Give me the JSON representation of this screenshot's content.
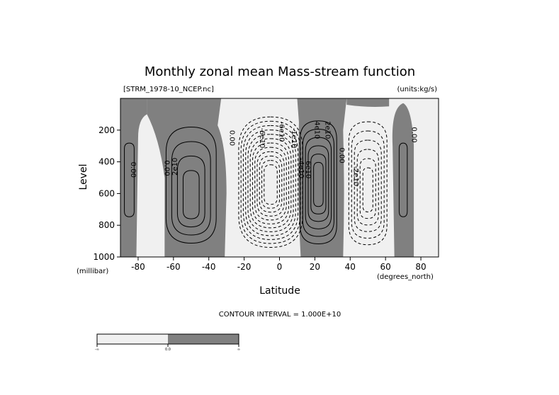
{
  "chart_data": {
    "type": "contour",
    "title": "Monthly zonal mean Mass-stream function",
    "file_label": "[STRM_1978-10_NCEP.nc]",
    "units_label": "(units:kg/s)",
    "xlabel": "Latitude",
    "xunits": "(degrees_north)",
    "ylabel": "Level",
    "yunits": "(millibar)",
    "xlim": [
      -90,
      90
    ],
    "ylim": [
      1000,
      0
    ],
    "x_ticks": [
      -80,
      -60,
      -40,
      -20,
      0,
      20,
      40,
      60,
      80
    ],
    "x_tick_labels": [
      "-80",
      "-60",
      "-40",
      "-20",
      "0",
      "20",
      "40",
      "60",
      "80"
    ],
    "y_ticks": [
      200,
      400,
      600,
      800,
      1000
    ],
    "y_tick_labels": [
      "200",
      "400",
      "600",
      "800",
      "1000"
    ],
    "contour_interval_text": "CONTOUR INTERVAL = 1.000E+10",
    "contour_interval": 10000000000.0,
    "negative_fill": "#f0f0f0",
    "positive_fill": "#808080",
    "cells": [
      {
        "name": "southern-polar-cell",
        "sign": "positive",
        "lat_range": [
          -90,
          -75
        ],
        "center_lat": -85,
        "center_p": 500,
        "n_contours": 1
      },
      {
        "name": "southern-ferrel-cell",
        "sign": "positive",
        "lat_range": [
          -64,
          -26
        ],
        "center_lat": -50,
        "center_p": 650,
        "n_contours": 4
      },
      {
        "name": "southern-hadley-cell",
        "sign": "negative",
        "lat_range": [
          -30,
          12
        ],
        "center_lat": -5,
        "center_p": 550,
        "n_contours": 12
      },
      {
        "name": "northern-hadley-cell",
        "sign": "positive",
        "lat_range": [
          10,
          37
        ],
        "center_lat": 22,
        "center_p": 550,
        "n_contours": 6
      },
      {
        "name": "northern-ferrel-cell",
        "sign": "negative",
        "lat_range": [
          37,
          65
        ],
        "center_lat": 50,
        "center_p": 600,
        "n_contours": 6
      },
      {
        "name": "northern-polar-cell",
        "sign": "positive",
        "lat_range": [
          62,
          75
        ],
        "center_lat": 70,
        "center_p": 500,
        "n_contours": 1
      }
    ],
    "contour_labels": [
      {
        "text": "0.00",
        "lat": -84,
        "p": 450,
        "rotate": 90
      },
      {
        "text": "0.00",
        "lat": -65,
        "p": 440,
        "rotate": 90
      },
      {
        "text": "2e10",
        "lat": -58,
        "p": 430,
        "rotate": -90
      },
      {
        "text": "0.00",
        "lat": -28,
        "p": 250,
        "rotate": 90
      },
      {
        "text": "-6e10",
        "lat": -11,
        "p": 250,
        "rotate": 90
      },
      {
        "text": "-6e10",
        "lat": 0,
        "p": 210,
        "rotate": 90
      },
      {
        "text": "-1e10",
        "lat": 7,
        "p": 250,
        "rotate": 90
      },
      {
        "text": "-4e10",
        "lat": 11,
        "p": 440,
        "rotate": 90
      },
      {
        "text": "6e10",
        "lat": 15,
        "p": 450,
        "rotate": 90
      },
      {
        "text": "4e10",
        "lat": 20,
        "p": 200,
        "rotate": 90
      },
      {
        "text": "2e10",
        "lat": 26,
        "p": 200,
        "rotate": 90
      },
      {
        "text": "0.00",
        "lat": 34,
        "p": 360,
        "rotate": 90
      },
      {
        "text": "-2e10",
        "lat": 42,
        "p": 490,
        "rotate": 90
      },
      {
        "text": "0.00",
        "lat": 75,
        "p": 230,
        "rotate": 90
      }
    ],
    "colorbar": {
      "labels": [
        "-∞",
        "0.0",
        "∞"
      ],
      "colors": [
        "#f0f0f0",
        "#808080"
      ]
    }
  }
}
